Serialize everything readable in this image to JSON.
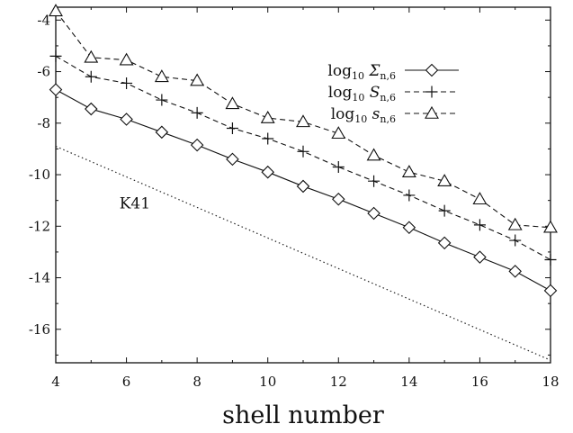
{
  "chart_data": {
    "type": "line",
    "title": "",
    "xlabel": "shell number",
    "ylabel": "",
    "xlim": [
      4,
      18
    ],
    "ylim": [
      -17.3,
      -3.5
    ],
    "xticks": [
      4,
      6,
      8,
      10,
      12,
      14,
      16,
      18
    ],
    "yticks": [
      -4,
      -6,
      -8,
      -10,
      -12,
      -14,
      -16
    ],
    "x": [
      4,
      5,
      6,
      7,
      8,
      9,
      10,
      11,
      12,
      13,
      14,
      15,
      16,
      17,
      18
    ],
    "legend_position": "top-right",
    "series": [
      {
        "name": "log10 Σ_{n,6}",
        "marker": "diamond",
        "line": "solid",
        "values": [
          -6.7,
          -7.45,
          -7.85,
          -8.35,
          -8.85,
          -9.4,
          -9.9,
          -10.45,
          -10.95,
          -11.5,
          -12.05,
          -12.65,
          -13.2,
          -13.75,
          -14.5
        ]
      },
      {
        "name": "log10 S_{n,6}",
        "marker": "plus",
        "line": "dashed",
        "values": [
          -5.4,
          -6.2,
          -6.45,
          -7.1,
          -7.6,
          -8.2,
          -8.6,
          -9.1,
          -9.7,
          -10.25,
          -10.8,
          -11.4,
          -11.95,
          -12.55,
          -13.3
        ]
      },
      {
        "name": "log10 s_{n,6}",
        "marker": "triangle",
        "line": "dashed",
        "values": [
          -3.65,
          -5.45,
          -5.55,
          -6.2,
          -6.35,
          -7.25,
          -7.8,
          -7.95,
          -8.4,
          -9.25,
          -9.9,
          -10.25,
          -10.95,
          -11.95,
          -12.05
        ]
      }
    ],
    "reference_line": {
      "label": "K41",
      "x": [
        4,
        18
      ],
      "values": [
        -8.9,
        -17.2
      ]
    }
  }
}
